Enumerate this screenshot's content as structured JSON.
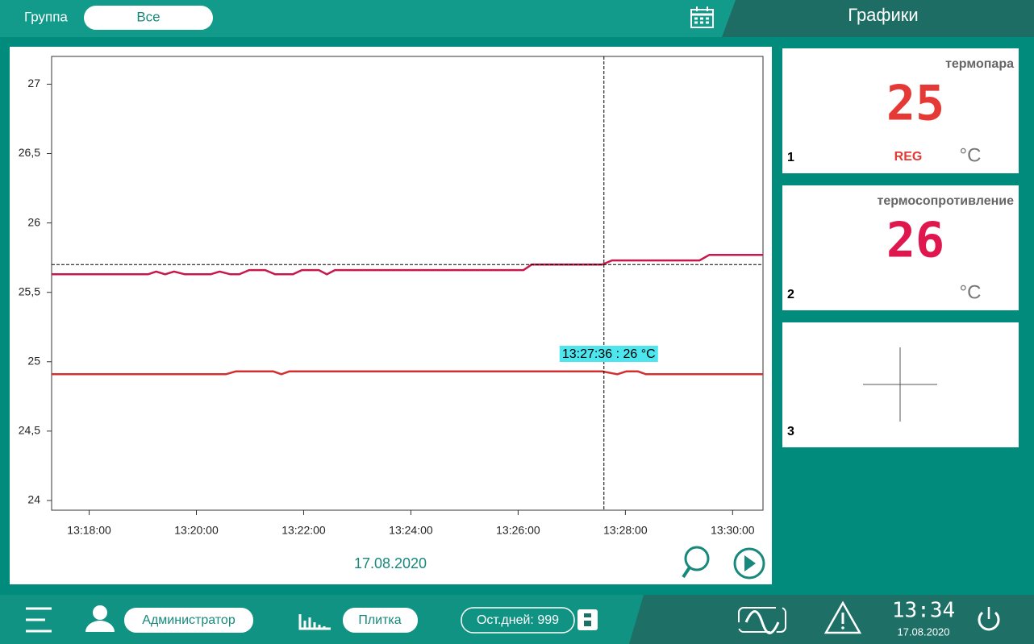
{
  "header": {
    "group_label": "Группа",
    "group_value": "Все",
    "title": "Графики"
  },
  "chart_data": {
    "type": "line",
    "xlim": [
      "13:17:18",
      "13:30:34"
    ],
    "xticks": [
      "13:18:00",
      "13:20:00",
      "13:22:00",
      "13:24:00",
      "13:26:00",
      "13:28:00",
      "13:30:00"
    ],
    "ylim": [
      23.93,
      27.2
    ],
    "yticks": [
      24,
      {
        "value": 24.5,
        "label": "24,5"
      },
      25,
      {
        "value": 25.5,
        "label": "25,5"
      },
      26,
      {
        "value": 26.5,
        "label": "26,5"
      },
      27
    ],
    "series": [
      {
        "color": "#c8174a",
        "x": [
          "13:17:18",
          "13:19:06",
          "13:19:15",
          "13:19:25",
          "13:19:35",
          "13:19:47",
          "13:20:16",
          "13:20:26",
          "13:20:38",
          "13:20:48",
          "13:20:59",
          "13:21:17",
          "13:21:28",
          "13:21:48",
          "13:21:58",
          "13:22:17",
          "13:22:26",
          "13:22:35",
          "13:26:06",
          "13:26:15",
          "13:27:34",
          "13:27:45",
          "13:29:23",
          "13:29:34",
          "13:30:34"
        ],
        "values": [
          25.63,
          25.63,
          25.65,
          25.63,
          25.65,
          25.63,
          25.63,
          25.65,
          25.63,
          25.63,
          25.66,
          25.66,
          25.63,
          25.63,
          25.66,
          25.66,
          25.63,
          25.66,
          25.66,
          25.7,
          25.7,
          25.73,
          25.73,
          25.77,
          25.77
        ]
      },
      {
        "color": "#d32f2f",
        "x": [
          "13:17:18",
          "13:20:33",
          "13:20:44",
          "13:21:26",
          "13:21:35",
          "13:21:44",
          "13:27:34",
          "13:27:51",
          "13:28:01",
          "13:28:14",
          "13:28:23",
          "13:30:34"
        ],
        "values": [
          24.91,
          24.91,
          24.93,
          24.93,
          24.91,
          24.93,
          24.93,
          24.91,
          24.93,
          24.93,
          24.91,
          24.91
        ]
      }
    ],
    "cursor": {
      "x": "13:27:36",
      "y": 25.7,
      "label": "13:27:36 : 26 °C"
    },
    "date": "17.08.2020"
  },
  "cards": [
    {
      "index": "1",
      "title": "термопара",
      "value": 25,
      "mode": "REG",
      "unit": "°C"
    },
    {
      "index": "2",
      "title": "термосопротивление",
      "value": 26,
      "unit": "°C"
    },
    {
      "index": "3"
    }
  ],
  "footer": {
    "user": "Администратор",
    "view": "Плитка",
    "days": "Ост.дней: 999",
    "time": "13:34",
    "date": "17.08.2020"
  }
}
